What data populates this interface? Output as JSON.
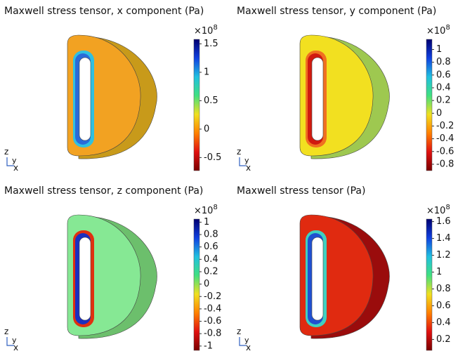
{
  "chart_data": [
    {
      "type": "surface",
      "title": "Maxwell stress tensor, x component (Pa)",
      "multiplier_base": "×10",
      "multiplier_exponent": "8",
      "clim": [
        -0.73,
        1.58
      ],
      "cticks": [
        1.5,
        1,
        0.5,
        0,
        -0.5
      ],
      "axes_labels": [
        "z",
        "y",
        "x"
      ],
      "colormap": [
        "#7a0000",
        "#e01010",
        "#ff8000",
        "#f0e020",
        "#40e080",
        "#20c0e0",
        "#1040e0",
        "#000070"
      ]
    },
    {
      "type": "surface",
      "title": "Maxwell stress tensor, y component (Pa)",
      "multiplier_base": "×10",
      "multiplier_exponent": "8",
      "clim": [
        -0.9,
        1.16
      ],
      "cticks": [
        1,
        0.8,
        0.6,
        0.4,
        0.2,
        0,
        -0.2,
        -0.4,
        -0.6,
        -0.8
      ],
      "axes_labels": [
        "z",
        "y",
        "x"
      ],
      "colormap": [
        "#7a0000",
        "#e01010",
        "#ff8000",
        "#f0e020",
        "#40e080",
        "#20c0e0",
        "#1040e0",
        "#000070"
      ]
    },
    {
      "type": "surface",
      "title": "Maxwell stress tensor, z component (Pa)",
      "multiplier_base": "×10",
      "multiplier_exponent": "8",
      "clim": [
        -1.07,
        1.05
      ],
      "cticks": [
        1,
        0.8,
        0.6,
        0.4,
        0.2,
        0,
        -0.2,
        -0.4,
        -0.6,
        -0.8,
        -1
      ],
      "axes_labels": [
        "z",
        "y",
        "x"
      ],
      "colormap": [
        "#7a0000",
        "#e01010",
        "#ff8000",
        "#f0e020",
        "#40e080",
        "#20c0e0",
        "#1040e0",
        "#000070"
      ]
    },
    {
      "type": "surface",
      "title": "Maxwell stress tensor (Pa)",
      "multiplier_base": "×10",
      "multiplier_exponent": "8",
      "clim": [
        0.07,
        1.63
      ],
      "cticks": [
        1.6,
        1.4,
        1.2,
        1,
        0.8,
        0.6,
        0.4,
        0.2
      ],
      "axes_labels": [
        "z",
        "y",
        "x"
      ],
      "colormap": [
        "#7a0000",
        "#e01010",
        "#ff8000",
        "#f0e020",
        "#40e080",
        "#20c0e0",
        "#1040e0",
        "#000070"
      ]
    }
  ]
}
